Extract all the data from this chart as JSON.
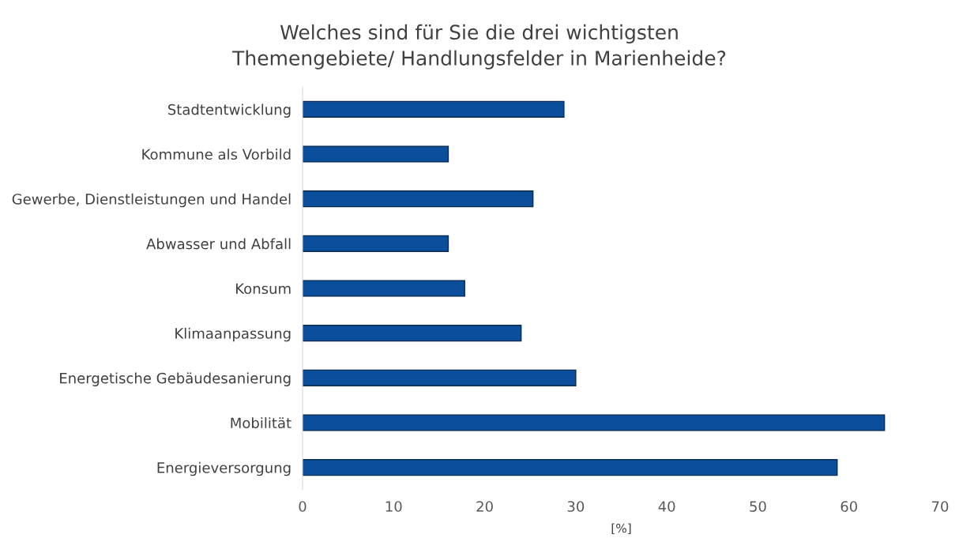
{
  "chart_data": {
    "type": "bar",
    "orientation": "horizontal",
    "title": "Welches sind für Sie die drei wichtigsten\nThemengebiete/ Handlungsfelder in Marienheide?",
    "xlabel": "[%]",
    "categories": [
      "Stadtentwicklung",
      "Kommune als Vorbild",
      "Gewerbe, Dienstleistungen und Handel",
      "Abwasser und Abfall",
      "Konsum",
      "Klimaanpassung",
      "Energetische Gebäudesanierung",
      "Mobilität",
      "Energieversorgung"
    ],
    "values": [
      28.7,
      16.0,
      25.3,
      16.0,
      17.8,
      24.0,
      30.0,
      63.9,
      58.7
    ],
    "color": "#0b4f9c",
    "xlim": [
      0,
      70
    ],
    "xticks": [
      0,
      10,
      20,
      30,
      40,
      50,
      60,
      70
    ],
    "grid": false,
    "legend": false
  }
}
